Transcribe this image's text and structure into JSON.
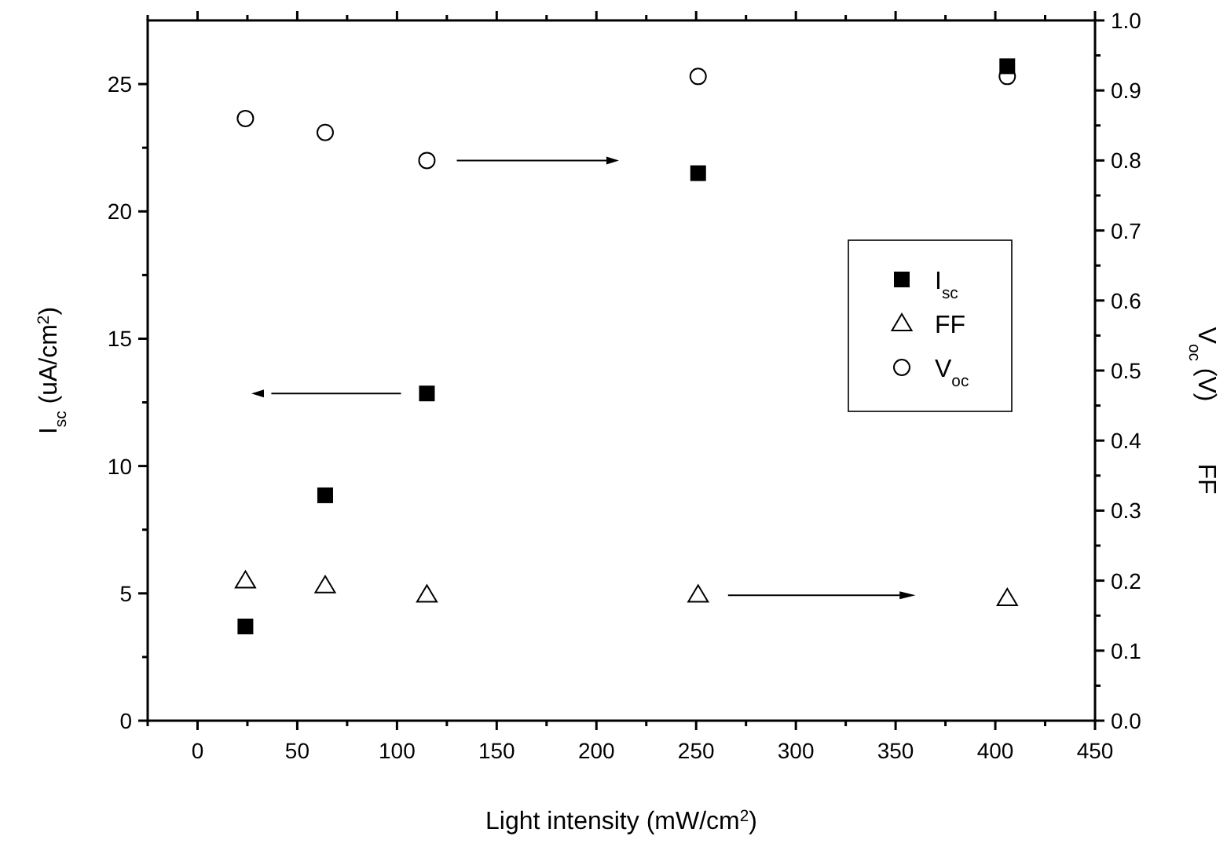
{
  "chart_data": {
    "type": "scatter",
    "xlabel": "Light intensity (mW/cm$^{2}$)",
    "ylabel": "I$_{sc}$ (uA/cm$^{2}$)",
    "y2label": "V$_{oc}$ (V)",
    "annotations": [
      "FF"
    ],
    "x": [
      24,
      64,
      115,
      251,
      406
    ],
    "xlim": [
      -25,
      450
    ],
    "xticks": [
      {
        "value": -25,
        "label": null
      },
      0,
      {
        "value": 25,
        "label": null
      },
      50,
      {
        "value": 75,
        "label": null
      },
      100,
      {
        "value": 125,
        "label": null
      },
      150,
      {
        "value": 175,
        "label": null
      },
      200,
      {
        "value": 225,
        "label": null
      },
      250,
      {
        "value": 275,
        "label": null
      },
      300,
      {
        "value": 325,
        "label": null
      },
      350,
      {
        "value": 375,
        "label": null
      },
      400,
      {
        "value": 425,
        "label": null
      },
      450
    ],
    "ylim": [
      0,
      27.5
    ],
    "yticks": [
      0,
      {
        "value": 2.5,
        "label": null
      },
      5,
      {
        "value": 7.5,
        "label": null
      },
      10,
      {
        "value": 12.5,
        "label": null
      },
      15,
      {
        "value": 17.5,
        "label": null
      },
      20,
      {
        "value": 22.5,
        "label": null
      },
      25
    ],
    "y2lim": [
      0,
      1.0
    ],
    "y2ticks": [
      {
        "value": 0,
        "label": "0.0"
      },
      {
        "value": 0.05,
        "label": null
      },
      0.1,
      {
        "value": 0.15,
        "label": null
      },
      0.2,
      {
        "value": 0.25,
        "label": null
      },
      0.3,
      {
        "value": 0.35,
        "label": null
      },
      0.4,
      {
        "value": 0.45,
        "label": null
      },
      0.5,
      {
        "value": 0.55,
        "label": null
      },
      0.6,
      {
        "value": 0.65,
        "label": null
      },
      0.7,
      {
        "value": 0.75,
        "label": null
      },
      0.8,
      {
        "value": 0.85,
        "label": null
      },
      0.9,
      {
        "value": 0.95,
        "label": null
      },
      {
        "value": 1.0,
        "label": "1.0"
      }
    ],
    "grid": false,
    "legend": "right",
    "series": [
      {
        "name": "I$_{sc}$",
        "color": "#000000",
        "marker": "square",
        "values": [
          3.7,
          8.85,
          12.85,
          21.5,
          25.7
        ]
      },
      {
        "name": "FF",
        "color": "#000000",
        "marker": "triangle",
        "axis": "y2",
        "values": [
          0.2,
          0.193,
          0.18,
          0.18,
          0.175
        ]
      },
      {
        "name": "V$_{oc}$",
        "color": "#000000",
        "marker": "circle",
        "axis": "y2",
        "values": [
          0.86,
          0.84,
          0.8,
          0.92,
          0.92
        ]
      }
    ]
  }
}
